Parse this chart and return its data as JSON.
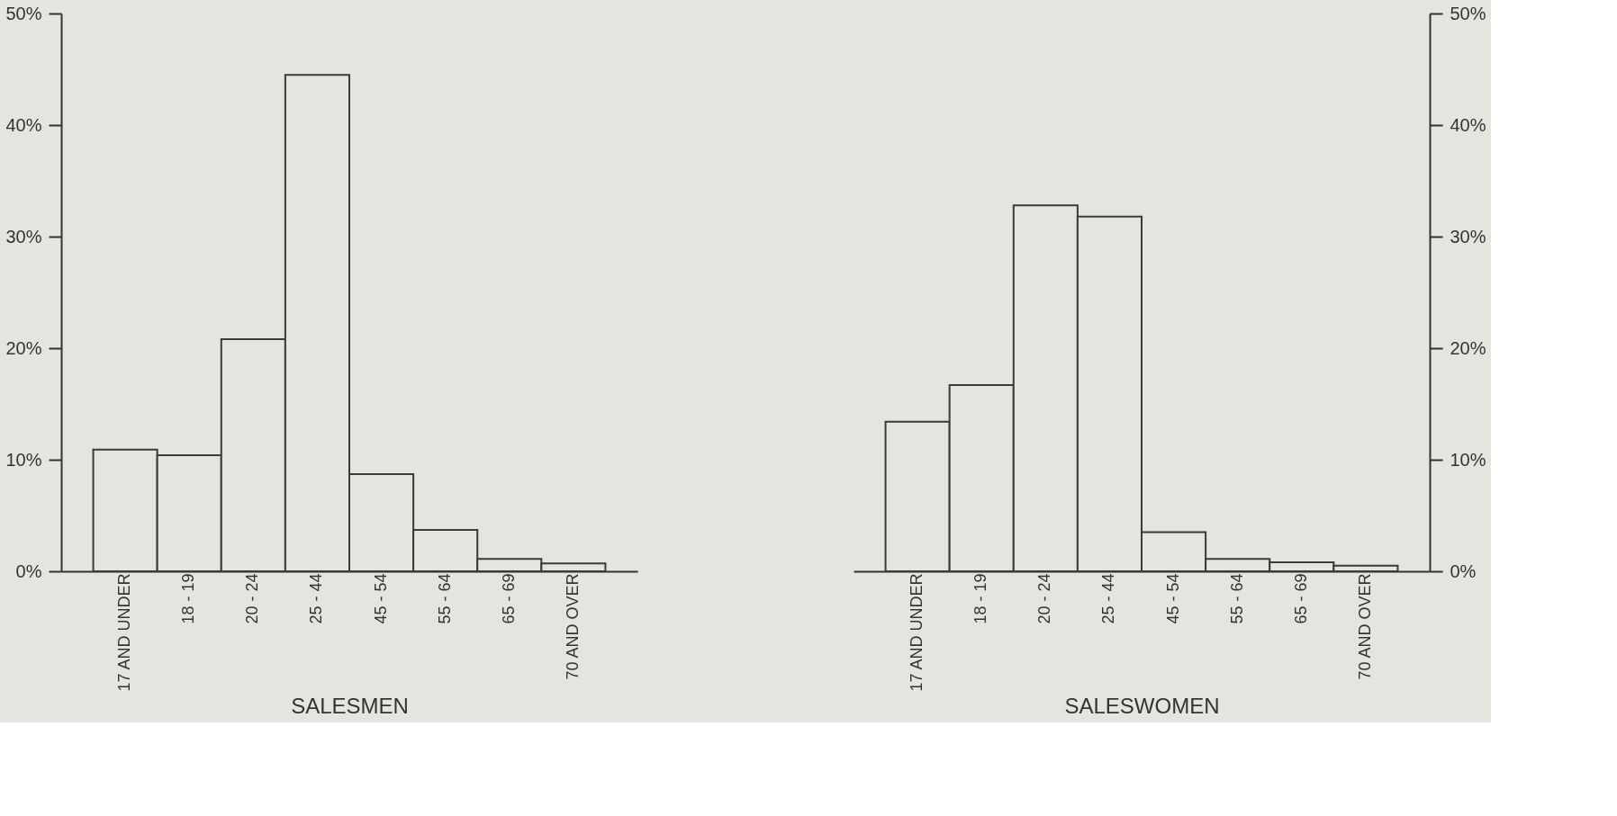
{
  "chart_data": [
    {
      "type": "bar",
      "xlabel": "SALESMEN",
      "categories": [
        "17 AND UNDER",
        "18 - 19",
        "20 - 24",
        "25 - 44",
        "45 - 54",
        "55 - 64",
        "65 - 69",
        "70 AND OVER"
      ],
      "values": [
        10.9,
        10.4,
        20.8,
        44.5,
        8.7,
        3.7,
        1.1,
        0.7
      ],
      "color": "#3a3a3a",
      "ylim": [
        0,
        50
      ],
      "yticks": [
        {
          "value": 0,
          "label": "0%"
        },
        {
          "value": 10,
          "label": "10%"
        },
        {
          "value": 20,
          "label": "20%"
        },
        {
          "value": 30,
          "label": "30%"
        },
        {
          "value": 40,
          "label": "40%"
        },
        {
          "value": 50,
          "label": "50%"
        }
      ],
      "grid": false
    },
    {
      "type": "bar",
      "xlabel": "SALESWOMEN",
      "categories": [
        "17 AND UNDER",
        "18 - 19",
        "20 - 24",
        "25 - 44",
        "45 - 54",
        "55 - 64",
        "65 - 69",
        "70 AND OVER"
      ],
      "values": [
        13.4,
        16.7,
        32.8,
        31.8,
        3.5,
        1.1,
        0.8,
        0.5
      ],
      "color": "#3a3a3a",
      "ylim": [
        0,
        50
      ],
      "yticks": [
        {
          "value": 0,
          "label": "0%"
        },
        {
          "value": 10,
          "label": "10%"
        },
        {
          "value": 20,
          "label": "20%"
        },
        {
          "value": 30,
          "label": "30%"
        },
        {
          "value": 40,
          "label": "40%"
        },
        {
          "value": 50,
          "label": "50%"
        }
      ],
      "grid": false
    }
  ]
}
